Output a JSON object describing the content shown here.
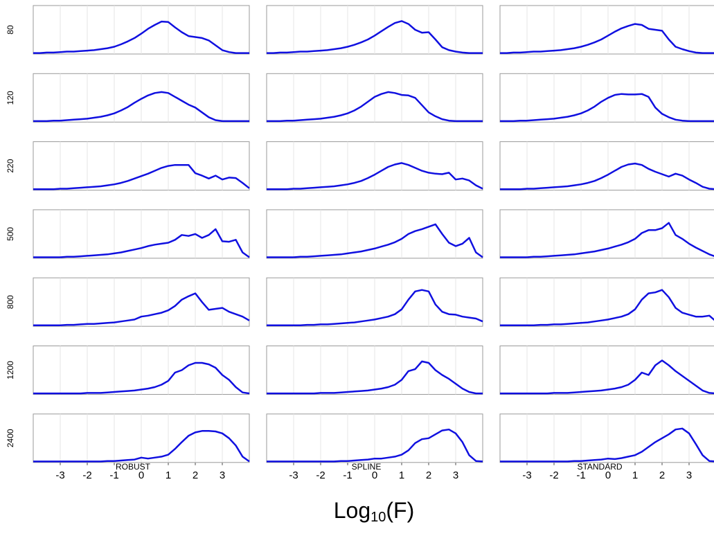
{
  "row_labels": [
    "80",
    "120",
    "220",
    "500",
    "800",
    "1200",
    "2400"
  ],
  "column_labels": [
    "ROBUST",
    "SPLINE",
    "STANDARD"
  ],
  "xlabel": {
    "base": "Log",
    "subscript": "10",
    "suffix": "(F)"
  },
  "xlim": [
    -4,
    4
  ],
  "ylim": [
    0,
    1
  ],
  "xticks": [
    -3,
    -2,
    -1,
    0,
    1,
    2,
    3
  ],
  "grid": true,
  "x": [
    -4,
    -3.75,
    -3.5,
    -3.25,
    -3,
    -2.75,
    -2.5,
    -2.25,
    -2,
    -1.75,
    -1.5,
    -1.25,
    -1,
    -0.75,
    -0.5,
    -0.25,
    0,
    0.25,
    0.5,
    0.75,
    1,
    1.25,
    1.5,
    1.75,
    2,
    2.25,
    2.5,
    2.75,
    3,
    3.25,
    3.5,
    3.75,
    4
  ],
  "chart_data": [
    {
      "type": "line",
      "color": "#1010e0",
      "values": [
        0.02,
        0.02,
        0.03,
        0.03,
        0.04,
        0.05,
        0.05,
        0.06,
        0.07,
        0.08,
        0.1,
        0.12,
        0.15,
        0.2,
        0.26,
        0.33,
        0.42,
        0.52,
        0.6,
        0.67,
        0.66,
        0.55,
        0.45,
        0.37,
        0.35,
        0.33,
        0.28,
        0.18,
        0.08,
        0.04,
        0.02,
        0.02,
        0.02
      ]
    },
    {
      "type": "line",
      "color": "#1010e0",
      "values": [
        0.02,
        0.02,
        0.03,
        0.03,
        0.04,
        0.05,
        0.05,
        0.06,
        0.07,
        0.08,
        0.1,
        0.12,
        0.15,
        0.19,
        0.24,
        0.3,
        0.38,
        0.47,
        0.56,
        0.64,
        0.68,
        0.62,
        0.5,
        0.44,
        0.45,
        0.3,
        0.14,
        0.08,
        0.05,
        0.03,
        0.02,
        0.02,
        0.02
      ]
    },
    {
      "type": "line",
      "color": "#1010e0",
      "values": [
        0.02,
        0.02,
        0.03,
        0.03,
        0.04,
        0.05,
        0.05,
        0.06,
        0.07,
        0.08,
        0.1,
        0.12,
        0.15,
        0.19,
        0.24,
        0.3,
        0.38,
        0.46,
        0.53,
        0.58,
        0.62,
        0.6,
        0.52,
        0.5,
        0.48,
        0.3,
        0.15,
        0.1,
        0.06,
        0.03,
        0.02,
        0.02,
        0.02
      ]
    },
    {
      "type": "line",
      "color": "#1010e0",
      "values": [
        0.02,
        0.02,
        0.02,
        0.03,
        0.03,
        0.04,
        0.05,
        0.06,
        0.07,
        0.09,
        0.11,
        0.14,
        0.18,
        0.24,
        0.31,
        0.4,
        0.48,
        0.55,
        0.6,
        0.62,
        0.6,
        0.52,
        0.44,
        0.36,
        0.3,
        0.2,
        0.1,
        0.04,
        0.02,
        0.02,
        0.02,
        0.02,
        0.02
      ]
    },
    {
      "type": "line",
      "color": "#1010e0",
      "values": [
        0.02,
        0.02,
        0.02,
        0.03,
        0.03,
        0.04,
        0.05,
        0.06,
        0.07,
        0.09,
        0.11,
        0.14,
        0.18,
        0.24,
        0.32,
        0.42,
        0.52,
        0.58,
        0.62,
        0.6,
        0.56,
        0.55,
        0.5,
        0.35,
        0.2,
        0.12,
        0.06,
        0.03,
        0.02,
        0.02,
        0.02,
        0.02,
        0.02
      ]
    },
    {
      "type": "line",
      "color": "#1010e0",
      "values": [
        0.02,
        0.02,
        0.02,
        0.03,
        0.03,
        0.04,
        0.05,
        0.06,
        0.07,
        0.09,
        0.11,
        0.14,
        0.18,
        0.24,
        0.32,
        0.42,
        0.5,
        0.56,
        0.58,
        0.57,
        0.57,
        0.58,
        0.52,
        0.3,
        0.17,
        0.1,
        0.05,
        0.03,
        0.02,
        0.02,
        0.02,
        0.02,
        0.02
      ]
    },
    {
      "type": "line",
      "color": "#1010e0",
      "values": [
        0.02,
        0.02,
        0.02,
        0.02,
        0.03,
        0.03,
        0.04,
        0.05,
        0.06,
        0.07,
        0.08,
        0.1,
        0.12,
        0.15,
        0.19,
        0.24,
        0.29,
        0.34,
        0.4,
        0.46,
        0.5,
        0.52,
        0.52,
        0.52,
        0.35,
        0.3,
        0.24,
        0.3,
        0.22,
        0.26,
        0.25,
        0.15,
        0.04
      ]
    },
    {
      "type": "line",
      "color": "#1010e0",
      "values": [
        0.02,
        0.02,
        0.02,
        0.02,
        0.03,
        0.03,
        0.04,
        0.05,
        0.06,
        0.07,
        0.08,
        0.1,
        0.12,
        0.15,
        0.19,
        0.25,
        0.32,
        0.4,
        0.48,
        0.53,
        0.56,
        0.52,
        0.46,
        0.4,
        0.36,
        0.34,
        0.33,
        0.36,
        0.22,
        0.24,
        0.2,
        0.1,
        0.03
      ]
    },
    {
      "type": "line",
      "color": "#1010e0",
      "values": [
        0.02,
        0.02,
        0.02,
        0.02,
        0.03,
        0.03,
        0.04,
        0.05,
        0.06,
        0.07,
        0.08,
        0.1,
        0.12,
        0.15,
        0.19,
        0.25,
        0.32,
        0.4,
        0.48,
        0.53,
        0.55,
        0.52,
        0.44,
        0.38,
        0.33,
        0.28,
        0.34,
        0.3,
        0.22,
        0.15,
        0.07,
        0.03,
        0.02
      ]
    },
    {
      "type": "line",
      "color": "#1010e0",
      "values": [
        0.02,
        0.02,
        0.02,
        0.02,
        0.02,
        0.03,
        0.03,
        0.04,
        0.05,
        0.06,
        0.07,
        0.08,
        0.1,
        0.12,
        0.15,
        0.18,
        0.21,
        0.25,
        0.28,
        0.3,
        0.32,
        0.38,
        0.48,
        0.46,
        0.5,
        0.42,
        0.48,
        0.6,
        0.35,
        0.34,
        0.38,
        0.12,
        0.02
      ]
    },
    {
      "type": "line",
      "color": "#1010e0",
      "values": [
        0.02,
        0.02,
        0.02,
        0.02,
        0.02,
        0.03,
        0.03,
        0.04,
        0.05,
        0.06,
        0.07,
        0.08,
        0.1,
        0.12,
        0.14,
        0.17,
        0.2,
        0.24,
        0.28,
        0.33,
        0.4,
        0.5,
        0.56,
        0.6,
        0.65,
        0.7,
        0.5,
        0.32,
        0.25,
        0.3,
        0.42,
        0.12,
        0.02
      ]
    },
    {
      "type": "line",
      "color": "#1010e0",
      "values": [
        0.02,
        0.02,
        0.02,
        0.02,
        0.02,
        0.03,
        0.03,
        0.04,
        0.05,
        0.06,
        0.07,
        0.08,
        0.1,
        0.12,
        0.14,
        0.17,
        0.2,
        0.24,
        0.28,
        0.33,
        0.4,
        0.52,
        0.58,
        0.58,
        0.62,
        0.73,
        0.48,
        0.4,
        0.3,
        0.22,
        0.15,
        0.08,
        0.03
      ]
    },
    {
      "type": "line",
      "color": "#1010e0",
      "values": [
        0.02,
        0.02,
        0.02,
        0.02,
        0.02,
        0.03,
        0.03,
        0.04,
        0.05,
        0.05,
        0.06,
        0.07,
        0.08,
        0.1,
        0.12,
        0.14,
        0.2,
        0.22,
        0.25,
        0.28,
        0.33,
        0.42,
        0.55,
        0.62,
        0.68,
        0.5,
        0.34,
        0.36,
        0.38,
        0.3,
        0.25,
        0.2,
        0.12
      ]
    },
    {
      "type": "line",
      "color": "#1010e0",
      "values": [
        0.02,
        0.02,
        0.02,
        0.02,
        0.02,
        0.02,
        0.03,
        0.03,
        0.04,
        0.04,
        0.05,
        0.06,
        0.07,
        0.08,
        0.1,
        0.12,
        0.14,
        0.17,
        0.2,
        0.25,
        0.35,
        0.55,
        0.72,
        0.75,
        0.72,
        0.45,
        0.3,
        0.25,
        0.24,
        0.2,
        0.18,
        0.16,
        0.1
      ]
    },
    {
      "type": "line",
      "color": "#1010e0",
      "values": [
        0.02,
        0.02,
        0.02,
        0.02,
        0.02,
        0.02,
        0.03,
        0.03,
        0.04,
        0.04,
        0.05,
        0.06,
        0.07,
        0.08,
        0.1,
        0.12,
        0.14,
        0.17,
        0.2,
        0.25,
        0.35,
        0.55,
        0.68,
        0.7,
        0.75,
        0.6,
        0.38,
        0.28,
        0.24,
        0.2,
        0.2,
        0.22,
        0.1
      ]
    },
    {
      "type": "line",
      "color": "#1010e0",
      "values": [
        0.02,
        0.02,
        0.02,
        0.02,
        0.02,
        0.02,
        0.02,
        0.02,
        0.03,
        0.03,
        0.03,
        0.04,
        0.05,
        0.06,
        0.07,
        0.08,
        0.1,
        0.12,
        0.15,
        0.2,
        0.28,
        0.45,
        0.5,
        0.6,
        0.65,
        0.65,
        0.62,
        0.55,
        0.4,
        0.3,
        0.15,
        0.04,
        0.02
      ]
    },
    {
      "type": "line",
      "color": "#1010e0",
      "values": [
        0.02,
        0.02,
        0.02,
        0.02,
        0.02,
        0.02,
        0.02,
        0.02,
        0.03,
        0.03,
        0.03,
        0.04,
        0.05,
        0.06,
        0.07,
        0.08,
        0.1,
        0.12,
        0.15,
        0.2,
        0.3,
        0.48,
        0.52,
        0.68,
        0.65,
        0.5,
        0.4,
        0.32,
        0.22,
        0.12,
        0.05,
        0.02,
        0.02
      ]
    },
    {
      "type": "line",
      "color": "#1010e0",
      "values": [
        0.02,
        0.02,
        0.02,
        0.02,
        0.02,
        0.02,
        0.02,
        0.02,
        0.03,
        0.03,
        0.03,
        0.04,
        0.05,
        0.06,
        0.07,
        0.08,
        0.1,
        0.12,
        0.15,
        0.2,
        0.3,
        0.45,
        0.4,
        0.6,
        0.7,
        0.6,
        0.48,
        0.38,
        0.28,
        0.18,
        0.08,
        0.03,
        0.02
      ]
    },
    {
      "type": "line",
      "color": "#1010e0",
      "values": [
        0.02,
        0.02,
        0.02,
        0.02,
        0.02,
        0.02,
        0.02,
        0.02,
        0.02,
        0.02,
        0.02,
        0.03,
        0.03,
        0.04,
        0.05,
        0.06,
        0.1,
        0.08,
        0.1,
        0.12,
        0.16,
        0.28,
        0.42,
        0.55,
        0.62,
        0.65,
        0.65,
        0.64,
        0.6,
        0.5,
        0.35,
        0.12,
        0.02
      ]
    },
    {
      "type": "line",
      "color": "#1010e0",
      "values": [
        0.02,
        0.02,
        0.02,
        0.02,
        0.02,
        0.02,
        0.02,
        0.02,
        0.02,
        0.02,
        0.02,
        0.03,
        0.03,
        0.04,
        0.05,
        0.06,
        0.08,
        0.08,
        0.1,
        0.12,
        0.16,
        0.25,
        0.4,
        0.48,
        0.5,
        0.58,
        0.66,
        0.68,
        0.6,
        0.42,
        0.15,
        0.03,
        0.02
      ]
    },
    {
      "type": "line",
      "color": "#1010e0",
      "values": [
        0.02,
        0.02,
        0.02,
        0.02,
        0.02,
        0.02,
        0.02,
        0.02,
        0.02,
        0.02,
        0.02,
        0.03,
        0.03,
        0.04,
        0.05,
        0.06,
        0.08,
        0.07,
        0.09,
        0.12,
        0.15,
        0.22,
        0.32,
        0.42,
        0.5,
        0.58,
        0.68,
        0.7,
        0.6,
        0.38,
        0.15,
        0.03,
        0.02
      ]
    }
  ]
}
